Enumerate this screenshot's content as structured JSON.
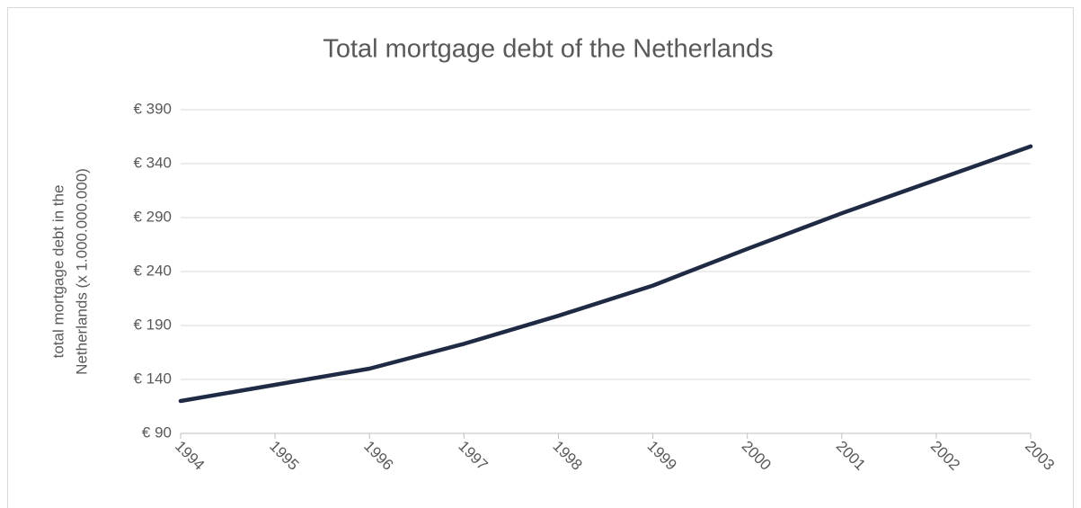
{
  "chart_data": {
    "type": "line",
    "title": "Total mortgage debt of the Netherlands",
    "y_label": [
      "total mortgage debt in the",
      "Netherlands (x 1.000.000.000)"
    ],
    "categories": [
      "1994",
      "1995",
      "1996",
      "1997",
      "1998",
      "1999",
      "2000",
      "2001",
      "2002",
      "2003"
    ],
    "series": [
      {
        "name": "total mortgage debt",
        "color": "#1f2a44",
        "values": [
          120,
          135,
          150,
          173,
          199,
          227,
          261,
          294,
          325,
          356
        ]
      }
    ],
    "ylim": [
      90,
      390
    ],
    "yticks": [
      {
        "value": 90,
        "label": "€ 90"
      },
      {
        "value": 140,
        "label": "€ 140"
      },
      {
        "value": 190,
        "label": "€ 190"
      },
      {
        "value": 240,
        "label": "€ 240"
      },
      {
        "value": 290,
        "label": "€ 290"
      },
      {
        "value": 340,
        "label": "€ 340"
      },
      {
        "value": 390,
        "label": "€ 390"
      }
    ],
    "grid": true
  }
}
